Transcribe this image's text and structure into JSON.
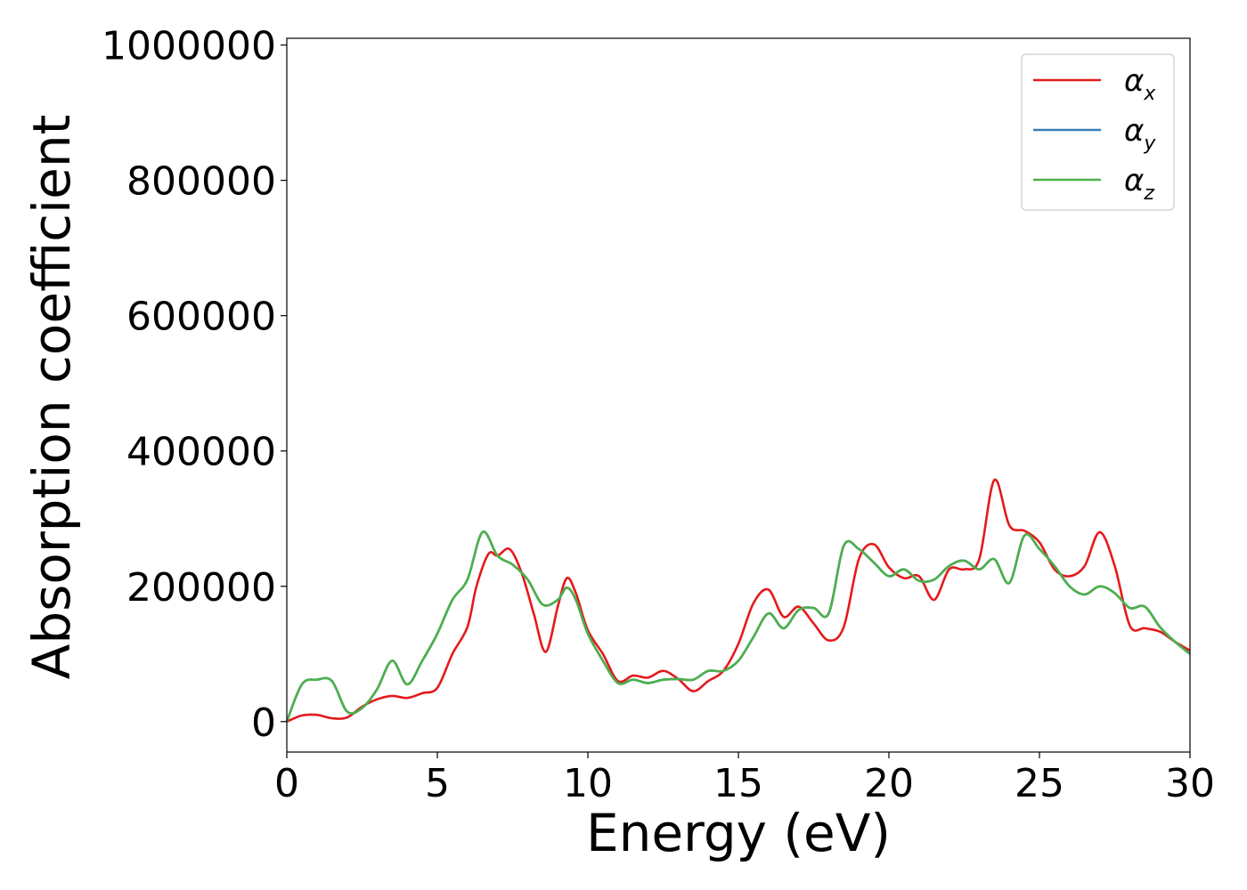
{
  "chart_data": {
    "type": "line",
    "xlabel": "Energy (eV)",
    "ylabel": "Absorption coefficient",
    "xlim": [
      0,
      30
    ],
    "ylim": [
      -45000,
      1010000
    ],
    "xticks": [
      0,
      5,
      10,
      15,
      20,
      25,
      30
    ],
    "yticks": [
      0,
      200000,
      400000,
      600000,
      800000,
      1000000
    ],
    "grid": false,
    "legend": "top-right",
    "series": [
      {
        "name": "α",
        "subscript": "x",
        "color": "#e41a1c",
        "points": [
          [
            0,
            0
          ],
          [
            0.5,
            9000
          ],
          [
            1,
            10000
          ],
          [
            1.5,
            5000
          ],
          [
            2,
            6000
          ],
          [
            2.5,
            22000
          ],
          [
            3,
            33000
          ],
          [
            3.5,
            38000
          ],
          [
            4,
            35000
          ],
          [
            4.5,
            42000
          ],
          [
            5,
            50000
          ],
          [
            5.5,
            100000
          ],
          [
            6,
            140000
          ],
          [
            6.3,
            200000
          ],
          [
            6.7,
            248000
          ],
          [
            7,
            245000
          ],
          [
            7.4,
            255000
          ],
          [
            7.8,
            220000
          ],
          [
            8.2,
            160000
          ],
          [
            8.6,
            103000
          ],
          [
            9,
            170000
          ],
          [
            9.3,
            212000
          ],
          [
            9.6,
            190000
          ],
          [
            10,
            135000
          ],
          [
            10.5,
            100000
          ],
          [
            11,
            60000
          ],
          [
            11.5,
            68000
          ],
          [
            12,
            65000
          ],
          [
            12.5,
            75000
          ],
          [
            13,
            63000
          ],
          [
            13.5,
            45000
          ],
          [
            14,
            60000
          ],
          [
            14.5,
            75000
          ],
          [
            15,
            115000
          ],
          [
            15.5,
            175000
          ],
          [
            16,
            195000
          ],
          [
            16.5,
            155000
          ],
          [
            17,
            170000
          ],
          [
            17.5,
            145000
          ],
          [
            18,
            120000
          ],
          [
            18.5,
            140000
          ],
          [
            19,
            240000
          ],
          [
            19.5,
            262000
          ],
          [
            20,
            228000
          ],
          [
            20.5,
            212000
          ],
          [
            21,
            215000
          ],
          [
            21.5,
            180000
          ],
          [
            22,
            225000
          ],
          [
            22.5,
            225000
          ],
          [
            23,
            240000
          ],
          [
            23.5,
            357000
          ],
          [
            24,
            290000
          ],
          [
            24.5,
            282000
          ],
          [
            25,
            265000
          ],
          [
            25.5,
            225000
          ],
          [
            26,
            215000
          ],
          [
            26.5,
            230000
          ],
          [
            27,
            280000
          ],
          [
            27.5,
            230000
          ],
          [
            28,
            142000
          ],
          [
            28.5,
            138000
          ],
          [
            29,
            133000
          ],
          [
            29.5,
            118000
          ],
          [
            30,
            105000
          ]
        ]
      },
      {
        "name": "α",
        "subscript": "y",
        "color": "#377eb8",
        "points": [
          [
            0,
            0
          ],
          [
            0.5,
            55000
          ],
          [
            1,
            62000
          ],
          [
            1.5,
            60000
          ],
          [
            2,
            15000
          ],
          [
            2.5,
            20000
          ],
          [
            3,
            48000
          ],
          [
            3.5,
            90000
          ],
          [
            4,
            55000
          ],
          [
            4.5,
            90000
          ],
          [
            5,
            130000
          ],
          [
            5.5,
            180000
          ],
          [
            6,
            210000
          ],
          [
            6.5,
            280000
          ],
          [
            7,
            245000
          ],
          [
            7.5,
            232000
          ],
          [
            8,
            210000
          ],
          [
            8.5,
            173000
          ],
          [
            9,
            180000
          ],
          [
            9.3,
            198000
          ],
          [
            9.6,
            180000
          ],
          [
            10,
            130000
          ],
          [
            10.5,
            90000
          ],
          [
            11,
            57000
          ],
          [
            11.5,
            62000
          ],
          [
            12,
            57000
          ],
          [
            12.5,
            62000
          ],
          [
            13,
            63000
          ],
          [
            13.5,
            62000
          ],
          [
            14,
            75000
          ],
          [
            14.5,
            75000
          ],
          [
            15,
            90000
          ],
          [
            15.5,
            125000
          ],
          [
            16,
            160000
          ],
          [
            16.5,
            138000
          ],
          [
            17,
            165000
          ],
          [
            17.5,
            168000
          ],
          [
            18,
            160000
          ],
          [
            18.5,
            260000
          ],
          [
            19,
            255000
          ],
          [
            19.5,
            235000
          ],
          [
            20,
            215000
          ],
          [
            20.5,
            225000
          ],
          [
            21,
            208000
          ],
          [
            21.5,
            210000
          ],
          [
            22,
            230000
          ],
          [
            22.5,
            238000
          ],
          [
            23,
            225000
          ],
          [
            23.5,
            240000
          ],
          [
            24,
            205000
          ],
          [
            24.5,
            275000
          ],
          [
            25,
            255000
          ],
          [
            25.5,
            230000
          ],
          [
            26,
            200000
          ],
          [
            26.5,
            188000
          ],
          [
            27,
            200000
          ],
          [
            27.5,
            190000
          ],
          [
            28,
            168000
          ],
          [
            28.5,
            170000
          ],
          [
            29,
            140000
          ],
          [
            29.5,
            118000
          ],
          [
            30,
            100000
          ]
        ]
      },
      {
        "name": "α",
        "subscript": "z",
        "color": "#4daf4a",
        "points": [
          [
            0,
            0
          ],
          [
            0.5,
            55000
          ],
          [
            1,
            62000
          ],
          [
            1.5,
            60000
          ],
          [
            2,
            15000
          ],
          [
            2.5,
            20000
          ],
          [
            3,
            48000
          ],
          [
            3.5,
            90000
          ],
          [
            4,
            55000
          ],
          [
            4.5,
            90000
          ],
          [
            5,
            130000
          ],
          [
            5.5,
            180000
          ],
          [
            6,
            210000
          ],
          [
            6.5,
            280000
          ],
          [
            7,
            245000
          ],
          [
            7.5,
            232000
          ],
          [
            8,
            210000
          ],
          [
            8.5,
            173000
          ],
          [
            9,
            180000
          ],
          [
            9.3,
            198000
          ],
          [
            9.6,
            180000
          ],
          [
            10,
            130000
          ],
          [
            10.5,
            90000
          ],
          [
            11,
            57000
          ],
          [
            11.5,
            62000
          ],
          [
            12,
            57000
          ],
          [
            12.5,
            62000
          ],
          [
            13,
            63000
          ],
          [
            13.5,
            62000
          ],
          [
            14,
            75000
          ],
          [
            14.5,
            75000
          ],
          [
            15,
            90000
          ],
          [
            15.5,
            125000
          ],
          [
            16,
            160000
          ],
          [
            16.5,
            138000
          ],
          [
            17,
            165000
          ],
          [
            17.5,
            168000
          ],
          [
            18,
            160000
          ],
          [
            18.5,
            260000
          ],
          [
            19,
            255000
          ],
          [
            19.5,
            235000
          ],
          [
            20,
            215000
          ],
          [
            20.5,
            225000
          ],
          [
            21,
            208000
          ],
          [
            21.5,
            210000
          ],
          [
            22,
            230000
          ],
          [
            22.5,
            238000
          ],
          [
            23,
            225000
          ],
          [
            23.5,
            240000
          ],
          [
            24,
            205000
          ],
          [
            24.5,
            275000
          ],
          [
            25,
            255000
          ],
          [
            25.5,
            230000
          ],
          [
            26,
            200000
          ],
          [
            26.5,
            188000
          ],
          [
            27,
            200000
          ],
          [
            27.5,
            190000
          ],
          [
            28,
            168000
          ],
          [
            28.5,
            170000
          ],
          [
            29,
            140000
          ],
          [
            29.5,
            118000
          ],
          [
            30,
            100000
          ]
        ]
      }
    ]
  }
}
